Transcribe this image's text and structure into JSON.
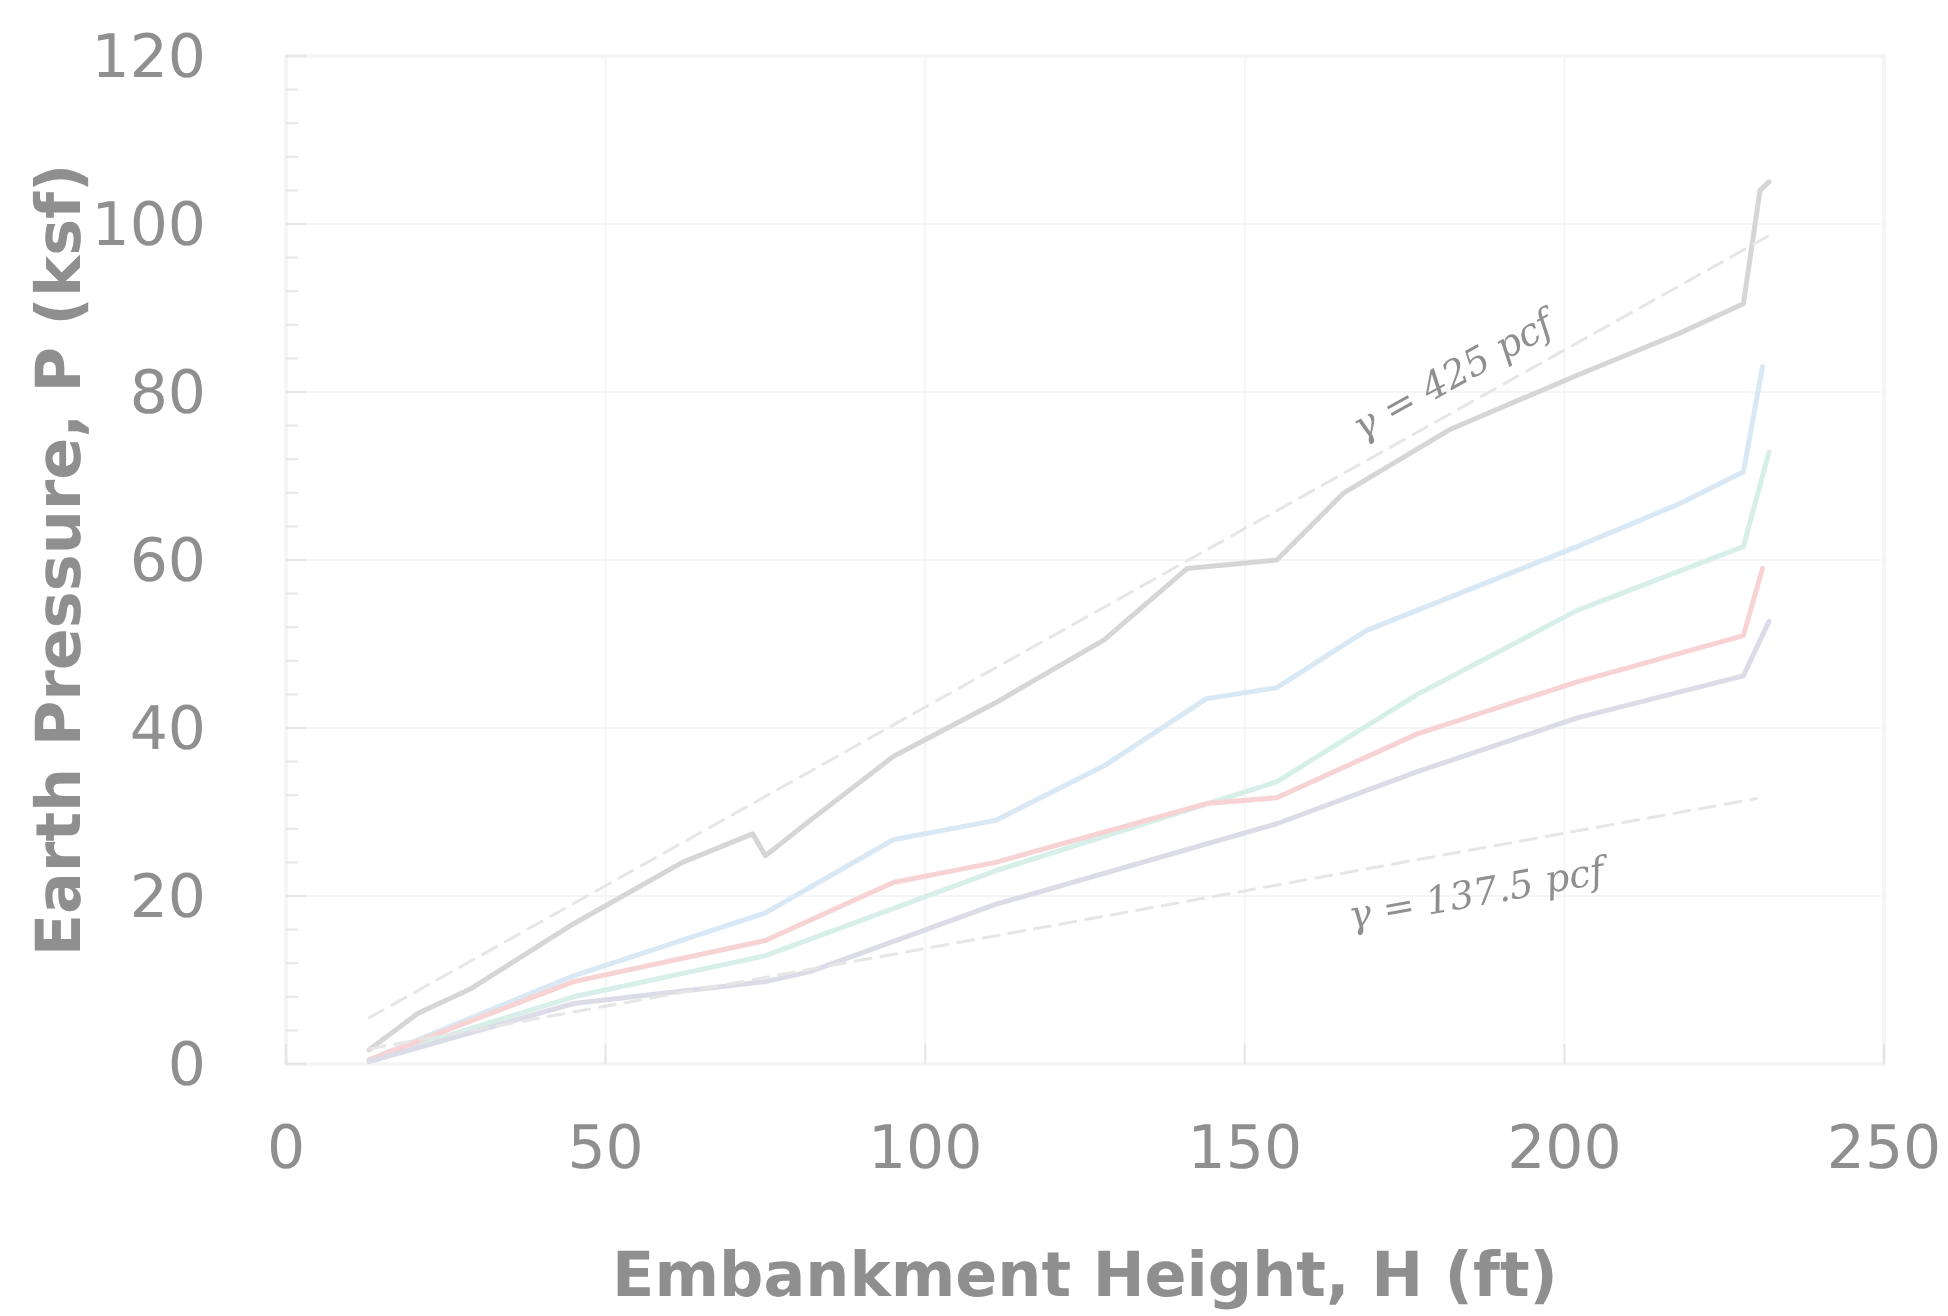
{
  "chart_data": {
    "type": "line",
    "xlabel": "Embankment Height, H (ft)",
    "ylabel": "Earth Pressure, P (ksf)",
    "xlim": [
      0,
      250
    ],
    "xticks": [
      0,
      50,
      100,
      150,
      200,
      250
    ],
    "ylim": [
      0,
      120
    ],
    "yticks": [
      0,
      {
        "value": 4,
        "label": null
      },
      {
        "value": 8,
        "label": null
      },
      {
        "value": 12,
        "label": null
      },
      {
        "value": 16,
        "label": null
      },
      20,
      {
        "value": 24,
        "label": null
      },
      {
        "value": 28,
        "label": null
      },
      {
        "value": 32,
        "label": null
      },
      {
        "value": 36,
        "label": null
      },
      40,
      {
        "value": 44,
        "label": null
      },
      {
        "value": 48,
        "label": null
      },
      {
        "value": 52,
        "label": null
      },
      {
        "value": 56,
        "label": null
      },
      60,
      {
        "value": 64,
        "label": null
      },
      {
        "value": 68,
        "label": null
      },
      {
        "value": 72,
        "label": null
      },
      {
        "value": 76,
        "label": null
      },
      80,
      {
        "value": 84,
        "label": null
      },
      {
        "value": 88,
        "label": null
      },
      {
        "value": 92,
        "label": null
      },
      {
        "value": 96,
        "label": null
      },
      100,
      {
        "value": 104,
        "label": null
      },
      {
        "value": 108,
        "label": null
      },
      {
        "value": 112,
        "label": null
      },
      {
        "value": 116,
        "label": null
      },
      120
    ],
    "grid": true,
    "series": [
      {
        "color": "#d6d6d6",
        "x": [
          13,
          20.6,
          29,
          45,
          62,
          73,
          75,
          82,
          95,
          111,
          128,
          141,
          155,
          165.5,
          182,
          202,
          218,
          228,
          230.6,
          232
        ],
        "values": [
          1.7,
          6,
          9,
          16.7,
          24,
          27.4,
          24.8,
          29,
          36.6,
          43,
          50.5,
          59,
          60,
          68,
          75.5,
          82,
          87,
          90.5,
          104,
          105
        ]
      },
      {
        "color": "#d8e8f5",
        "x": [
          13,
          45,
          75,
          95,
          111,
          128,
          144,
          155,
          169,
          202,
          218,
          228,
          231
        ],
        "values": [
          0.5,
          10.5,
          18,
          26.7,
          29,
          35.5,
          43.5,
          44.8,
          51.6,
          61.6,
          66.7,
          70.5,
          83
        ]
      },
      {
        "color": "#d6efe8",
        "x": [
          13,
          45,
          75,
          111,
          155,
          177,
          202,
          228,
          232
        ],
        "values": [
          0.5,
          8,
          12.9,
          23,
          33.6,
          44,
          54,
          61.6,
          72.8
        ]
      },
      {
        "color": "#f7d3d3",
        "x": [
          13,
          45,
          75,
          95,
          111,
          144,
          155,
          177,
          202,
          228,
          231
        ],
        "values": [
          0.5,
          9.8,
          14.7,
          21.6,
          24,
          31,
          31.7,
          39.3,
          45.5,
          51,
          59
        ]
      },
      {
        "color": "#dcdce8",
        "x": [
          13,
          45,
          75,
          82,
          111,
          155,
          177,
          202,
          228,
          232
        ],
        "values": [
          0.3,
          7.2,
          9.8,
          11,
          19,
          28.6,
          34.8,
          41.2,
          46.2,
          52.7
        ]
      },
      {
        "color": "#e6e6e6",
        "line_style": "dashed",
        "x": [
          13,
          232
        ],
        "values": [
          5.5,
          98.6
        ]
      },
      {
        "color": "#e6e6e6",
        "line_style": "dashed",
        "x": [
          13,
          230
        ],
        "values": [
          1.8,
          31.6
        ]
      }
    ],
    "annotations": [
      {
        "text": "γ = 425 pcf",
        "x": 185,
        "y": 78.6
      },
      {
        "text": "γ = 137.5 pcf",
        "x": 185,
        "y": 25.4
      }
    ]
  }
}
